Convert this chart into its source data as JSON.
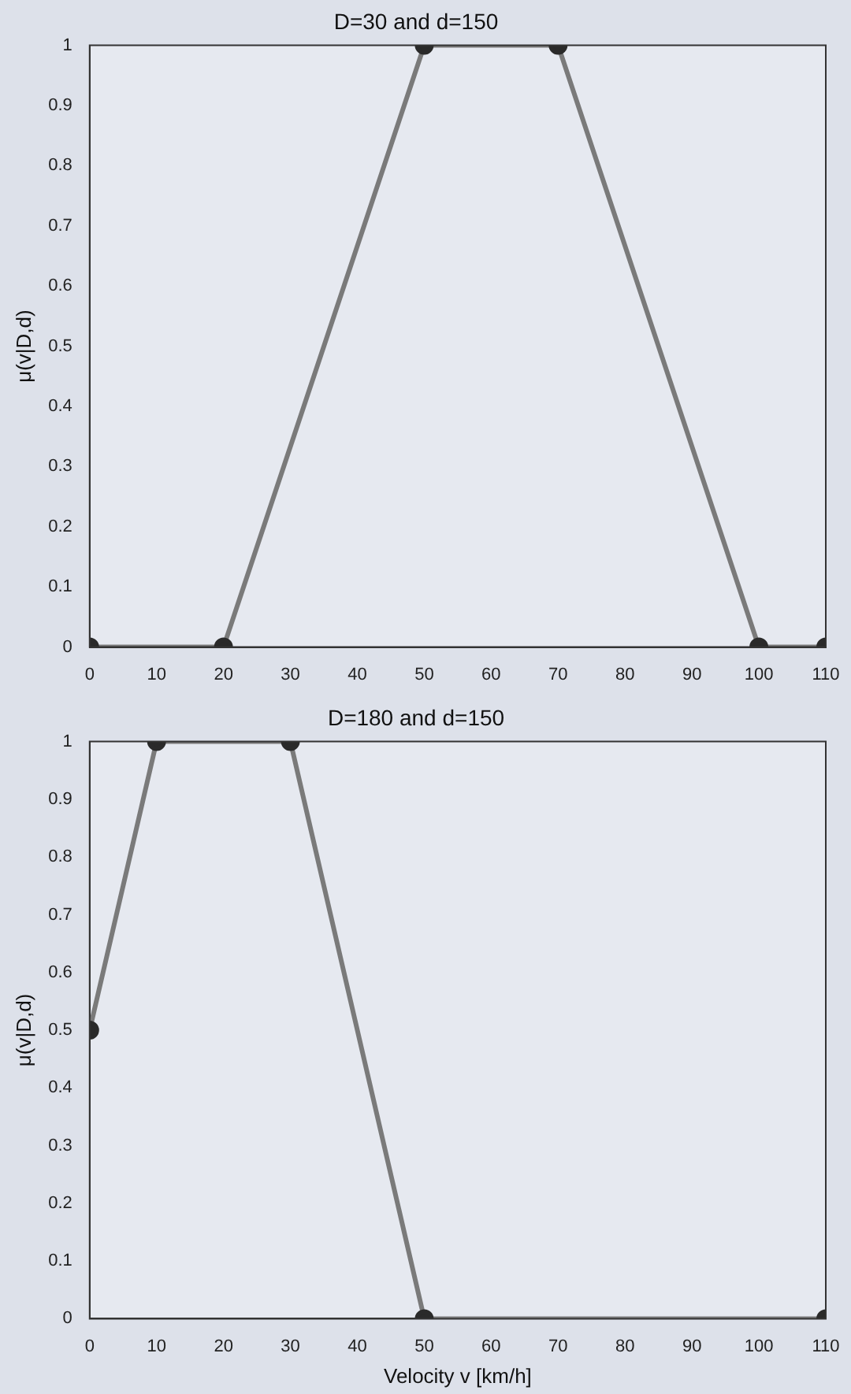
{
  "chart_data": [
    {
      "type": "line",
      "title": "D=30 and d=150",
      "ylabel": "μ(v|D,d)",
      "marker": "circle",
      "line_style": "solid",
      "grid": false,
      "legend": false,
      "series": [
        {
          "color": "#7a7a7a",
          "x": [
            0,
            20,
            50,
            70,
            100,
            110
          ],
          "values": [
            0,
            0,
            1,
            1,
            0,
            0
          ]
        }
      ],
      "xlim": [
        0,
        110
      ],
      "xticks": [
        0,
        10,
        20,
        30,
        40,
        50,
        60,
        70,
        80,
        90,
        100,
        110
      ],
      "ylim": [
        0,
        1
      ],
      "yticks": [
        0,
        0.1,
        0.2,
        0.3,
        0.4,
        0.5,
        0.6,
        0.7,
        0.8,
        0.9,
        1
      ]
    },
    {
      "type": "line",
      "title": "D=180 and d=150",
      "xlabel": "Velocity v [km/h]",
      "ylabel": "μ(v|D,d)",
      "marker": "circle",
      "line_style": "solid",
      "grid": false,
      "legend": false,
      "series": [
        {
          "color": "#7a7a7a",
          "x": [
            0,
            10,
            30,
            50,
            110
          ],
          "values": [
            0.5,
            1,
            1,
            0,
            0
          ]
        }
      ],
      "xlim": [
        0,
        110
      ],
      "xticks": [
        0,
        10,
        20,
        30,
        40,
        50,
        60,
        70,
        80,
        90,
        100,
        110
      ],
      "ylim": [
        0,
        1
      ],
      "yticks": [
        0,
        0.1,
        0.2,
        0.3,
        0.4,
        0.5,
        0.6,
        0.7,
        0.8,
        0.9,
        1
      ]
    }
  ]
}
